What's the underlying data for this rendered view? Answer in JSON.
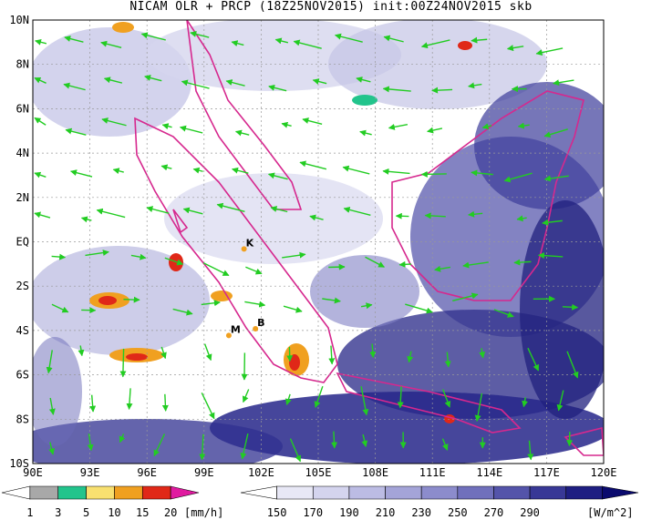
{
  "title": "NICAM OLR + PRCP (18Z25NOV2015) init:00Z24NOV2015 skb",
  "map": {
    "lon_labels": [
      "90E",
      "93E",
      "96E",
      "99E",
      "102E",
      "105E",
      "108E",
      "111E",
      "114E",
      "117E",
      "120E"
    ],
    "lat_labels": [
      "10N",
      "8N",
      "6N",
      "4N",
      "2N",
      "EQ",
      "2S",
      "4S",
      "6S",
      "8S",
      "10S"
    ],
    "lon_range": [
      90,
      120
    ],
    "lat_range": [
      -10,
      10
    ],
    "grid": true,
    "coast_color": "#d6288e",
    "wind_color": "#22cc22",
    "places": [
      {
        "label": "K",
        "lon": 101.1,
        "lat": -0.2
      },
      {
        "label": "M",
        "lon": 100.3,
        "lat": -4.1
      },
      {
        "label": "B",
        "lon": 101.7,
        "lat": -3.8
      }
    ]
  },
  "legend_precip": {
    "unit": "[mm/h]",
    "ticks": [
      "1",
      "3",
      "5",
      "10",
      "15",
      "20"
    ],
    "colors": [
      "#ffffff",
      "#a8a8a8",
      "#22c48c",
      "#f8e070",
      "#f0a020",
      "#e02818",
      "#e01aa0"
    ]
  },
  "legend_olr": {
    "unit": "[W/m^2]",
    "ticks": [
      "150",
      "170",
      "190",
      "210",
      "230",
      "250",
      "270",
      "290"
    ],
    "colors": [
      "#ffffff",
      "#e8e8f6",
      "#d4d4ee",
      "#bcbce4",
      "#a4a4d8",
      "#8c8ccc",
      "#7070bc",
      "#5454aa",
      "#383896",
      "#1e1e82",
      "#0a0a6e"
    ]
  }
}
